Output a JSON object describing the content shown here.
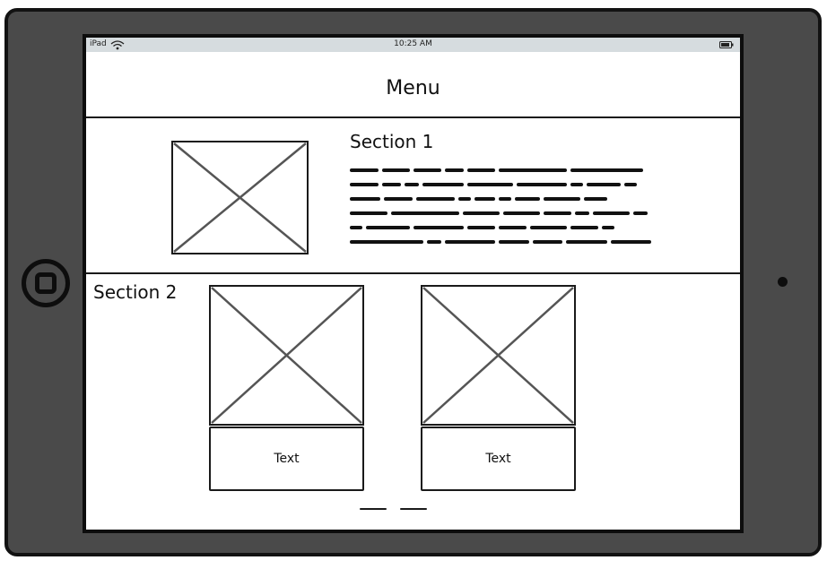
{
  "status_bar": {
    "device": "iPad",
    "time": "10:25 AM",
    "icons": [
      "wifi-icon",
      "battery-icon"
    ]
  },
  "header": {
    "title": "Menu"
  },
  "section1": {
    "title": "Section 1",
    "image": "image-placeholder-icon",
    "body_text": "scribbled placeholder text"
  },
  "section2": {
    "title": "Section 2",
    "cards": [
      {
        "image": "image-placeholder-icon",
        "label": "Text"
      },
      {
        "image": "image-placeholder-icon",
        "label": "Text"
      }
    ]
  },
  "pager": {
    "dot_count": 2
  },
  "colors": {
    "device_frame": "#4a4a4a",
    "device_border": "#121212",
    "status_bar": "#d6dcdf",
    "ink": "#1a1a1a",
    "placeholder_cross": "#555555"
  }
}
